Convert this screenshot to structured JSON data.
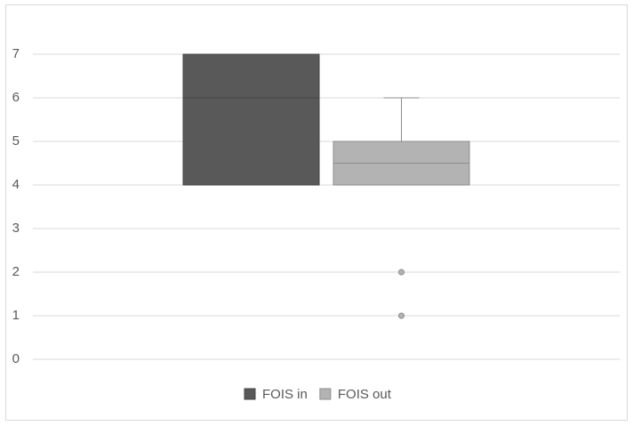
{
  "chart_data": {
    "type": "box",
    "ylim": [
      0,
      7
    ],
    "yticks": [
      0,
      1,
      2,
      3,
      4,
      5,
      6,
      7
    ],
    "grid": true,
    "legend": "bottom",
    "series": [
      {
        "name": "FOIS in",
        "color": "#595959",
        "q1": 4,
        "median": 6,
        "q3": 7,
        "whisker_low": 4,
        "whisker_high": 7
      },
      {
        "name": "FOIS out",
        "color": "#b3b3b3",
        "q1": 4,
        "median": 4.5,
        "q3": 5,
        "whisker_low": 4,
        "whisker_high": 6,
        "outliers": [
          2,
          1
        ]
      }
    ]
  }
}
